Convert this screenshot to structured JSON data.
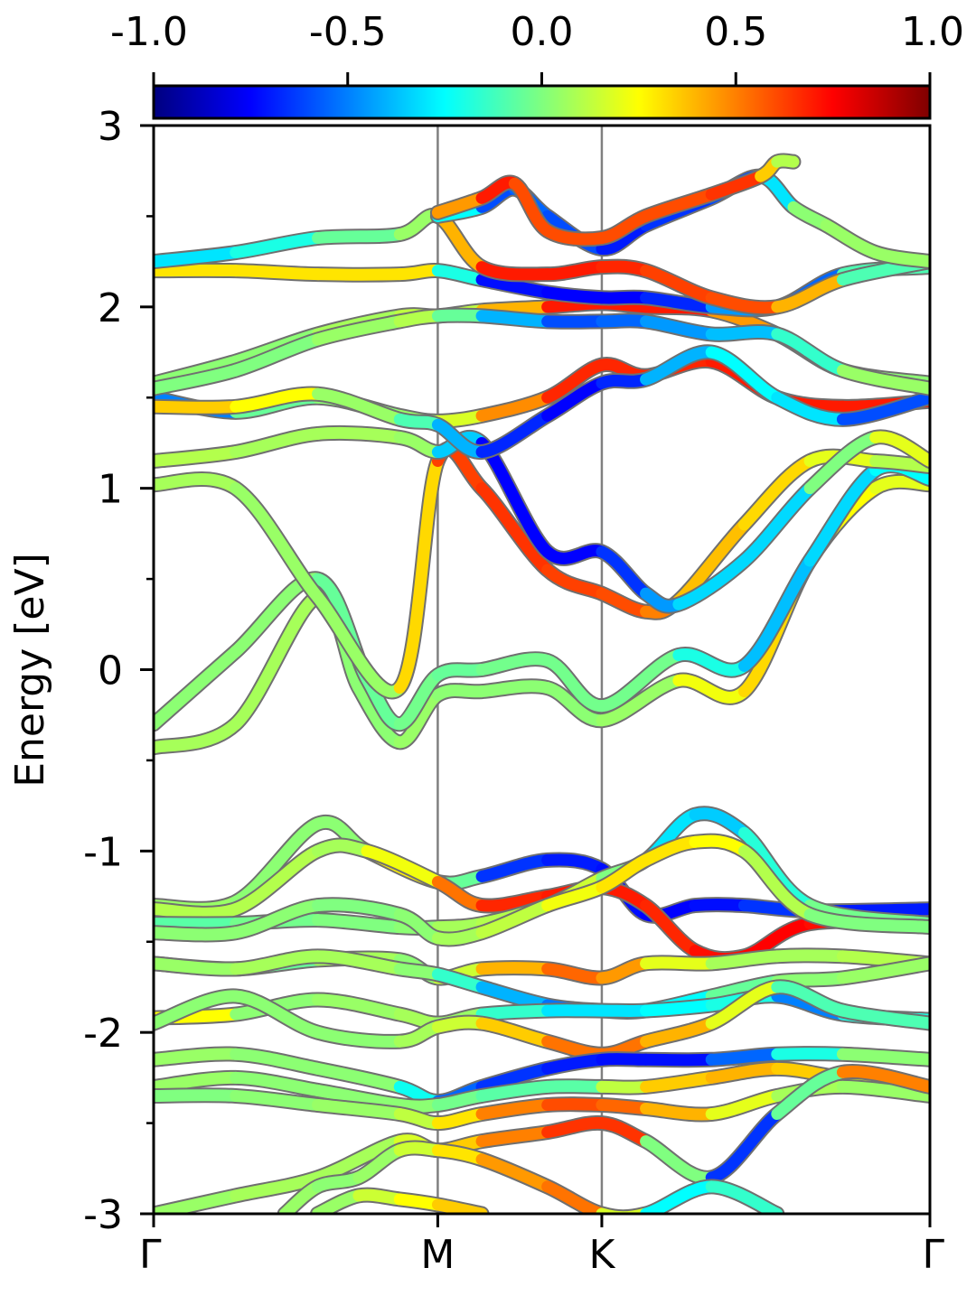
{
  "chart_data": {
    "type": "line",
    "title": "",
    "xlabel": "",
    "ylabel": "Energy [eV]",
    "ylim": [
      -3,
      3
    ],
    "xlim": [
      0,
      4.732
    ],
    "x_ticks": [
      {
        "x": 0,
        "label": "Γ"
      },
      {
        "x": 1.732,
        "label": "M"
      },
      {
        "x": 2.732,
        "label": "K"
      },
      {
        "x": 4.732,
        "label": "Γ"
      }
    ],
    "y_ticks": [
      -3,
      -2,
      -1,
      0,
      1,
      2,
      3
    ],
    "y_tick_labels": [
      "-3",
      "-2",
      "-1",
      "0",
      "1",
      "2",
      "3"
    ],
    "y_minor_ticks": [
      -2.5,
      -1.5,
      -0.5,
      0.5,
      1.5,
      2.5
    ],
    "high_symmetry_lines": [
      1.732,
      2.732
    ],
    "colorbar": {
      "colormap": "jet",
      "min": -1.0,
      "max": 1.0,
      "tick_values": [
        -1.0,
        -0.5,
        0.0,
        0.5,
        1.0
      ],
      "tick_labels": [
        "-1.0",
        "-0.5",
        "0.0",
        "0.5",
        "1.0"
      ]
    },
    "grid": false,
    "series": [
      {
        "x": [
          0,
          0.5,
          1.0,
          1.25,
          1.5,
          1.732,
          2.0,
          2.4,
          2.732,
          3.2,
          3.6,
          4.0,
          4.4,
          4.732
        ],
        "y": [
          -0.43,
          -0.3,
          0.4,
          -0.1,
          -0.4,
          -0.14,
          -0.12,
          -0.1,
          -0.28,
          -0.06,
          -0.12,
          0.6,
          1.0,
          1.02
        ],
        "c": [
          0.05,
          0.1,
          0.05,
          0.0,
          0.05,
          0.05,
          0.0,
          0.05,
          0.0,
          0.1,
          0.35,
          0.3,
          0.2,
          0.2
        ]
      },
      {
        "x": [
          0,
          0.5,
          1.0,
          1.3,
          1.5,
          1.732,
          2.0,
          2.4,
          2.732,
          3.2,
          3.6,
          4.0,
          4.4,
          4.732
        ],
        "y": [
          -0.3,
          0.1,
          0.5,
          -0.05,
          -0.3,
          -0.03,
          0.0,
          0.05,
          -0.2,
          0.08,
          0.02,
          0.6,
          1.1,
          1.05
        ],
        "c": [
          0.0,
          0.05,
          0.0,
          -0.1,
          0.0,
          -0.05,
          -0.05,
          0.0,
          -0.05,
          0.0,
          -0.4,
          -0.35,
          -0.3,
          -0.2
        ]
      },
      {
        "x": [
          0,
          0.5,
          1.0,
          1.5,
          1.732,
          2.0,
          2.4,
          2.732,
          3.0,
          3.2,
          3.6,
          4.0,
          4.4,
          4.732
        ],
        "y": [
          1.02,
          1.0,
          0.4,
          -0.1,
          1.15,
          1.0,
          0.55,
          0.42,
          0.32,
          0.38,
          0.8,
          1.15,
          1.15,
          1.12
        ],
        "c": [
          0.1,
          0.05,
          0.05,
          0.05,
          0.6,
          0.65,
          0.65,
          0.6,
          0.6,
          0.4,
          0.35,
          0.3,
          0.1,
          0.1
        ]
      },
      {
        "x": [
          0,
          0.5,
          1.0,
          1.5,
          1.732,
          2.0,
          2.4,
          2.732,
          3.0,
          3.2,
          3.6,
          4.0,
          4.4,
          4.732
        ],
        "y": [
          1.15,
          1.2,
          1.3,
          1.28,
          1.2,
          1.25,
          0.65,
          0.65,
          0.42,
          0.36,
          0.6,
          1.0,
          1.28,
          1.15
        ],
        "c": [
          0.1,
          0.1,
          0.05,
          0.1,
          0.0,
          -0.7,
          -0.8,
          -0.7,
          -0.6,
          -0.3,
          -0.35,
          -0.3,
          0.3,
          0.1
        ]
      },
      {
        "x": [
          0,
          0.5,
          1.0,
          1.5,
          1.732,
          2.0,
          2.4,
          2.732,
          3.0,
          3.4,
          3.8,
          4.2,
          4.732
        ],
        "y": [
          1.5,
          1.42,
          1.5,
          1.4,
          1.37,
          1.4,
          1.5,
          1.68,
          1.62,
          1.7,
          1.5,
          1.45,
          1.48
        ],
        "c": [
          -0.9,
          -0.1,
          0.0,
          0.05,
          0.05,
          0.3,
          0.65,
          0.7,
          0.65,
          0.7,
          0.7,
          0.7,
          0.7
        ]
      },
      {
        "x": [
          0,
          0.5,
          1.0,
          1.5,
          1.732,
          2.0,
          2.4,
          2.732,
          3.0,
          3.4,
          3.8,
          4.2,
          4.732
        ],
        "y": [
          1.45,
          1.45,
          1.52,
          1.38,
          1.35,
          1.2,
          1.4,
          1.58,
          1.6,
          1.75,
          1.5,
          1.38,
          1.5
        ],
        "c": [
          0.3,
          0.4,
          0.1,
          0.0,
          -0.2,
          -0.6,
          -0.75,
          -0.75,
          -0.6,
          -0.2,
          -0.3,
          -0.3,
          -0.9
        ]
      },
      {
        "x": [
          0,
          0.5,
          1.0,
          1.5,
          1.732,
          2.0,
          2.4,
          2.732,
          3.0,
          3.4,
          3.8,
          4.2,
          4.732
        ],
        "y": [
          1.58,
          1.7,
          1.85,
          1.95,
          1.95,
          1.98,
          2.0,
          2.02,
          2.0,
          1.98,
          1.85,
          1.65,
          1.58
        ],
        "c": [
          0.05,
          0.0,
          0.05,
          0.1,
          0.15,
          0.1,
          0.7,
          0.7,
          0.7,
          0.7,
          0.2,
          0.0,
          0.05
        ]
      },
      {
        "x": [
          0,
          0.5,
          1.0,
          1.5,
          1.732,
          2.0,
          2.4,
          2.732,
          3.0,
          3.4,
          3.8,
          4.2,
          4.732
        ],
        "y": [
          1.55,
          1.65,
          1.82,
          1.92,
          1.95,
          1.95,
          1.92,
          1.92,
          1.92,
          1.85,
          1.85,
          1.65,
          1.55
        ],
        "c": [
          0.0,
          0.0,
          0.0,
          0.1,
          0.1,
          -0.2,
          -0.6,
          -0.6,
          -0.5,
          -0.4,
          -0.35,
          0.05,
          0.05
        ]
      },
      {
        "x": [
          0,
          0.5,
          1.0,
          1.5,
          1.732,
          2.0,
          2.4,
          2.732,
          3.0,
          3.4,
          3.8,
          4.2,
          4.732
        ],
        "y": [
          2.2,
          2.2,
          2.18,
          2.18,
          2.2,
          2.15,
          2.08,
          2.05,
          2.05,
          2.0,
          2.0,
          2.18,
          2.22
        ],
        "c": [
          0.3,
          0.3,
          0.3,
          0.3,
          0.3,
          -0.7,
          -0.75,
          -0.75,
          -0.75,
          -0.6,
          -0.3,
          -0.8,
          0.6
        ]
      },
      {
        "x": [
          0,
          0.5,
          1.0,
          1.5,
          1.732,
          2.0,
          2.4,
          2.732,
          3.0,
          3.4,
          3.8,
          4.2,
          4.732
        ],
        "y": [
          2.25,
          2.3,
          2.38,
          2.4,
          2.5,
          2.22,
          2.18,
          2.22,
          2.2,
          2.05,
          2.0,
          2.15,
          2.25
        ],
        "c": [
          -0.3,
          -0.3,
          -0.1,
          0.0,
          0.1,
          0.7,
          0.7,
          0.7,
          0.65,
          0.6,
          0.6,
          0.2,
          -0.4
        ]
      },
      {
        "x": [
          1.732,
          2.0,
          2.2,
          2.4,
          2.732,
          3.0,
          3.4,
          3.7,
          3.9,
          4.1,
          4.4,
          4.732
        ],
        "y": [
          2.5,
          2.55,
          2.65,
          2.5,
          2.32,
          2.45,
          2.6,
          2.72,
          2.55,
          2.45,
          2.3,
          2.25
        ],
        "c": [
          0.1,
          -0.6,
          -0.6,
          -0.5,
          -0.7,
          -0.7,
          -0.6,
          -0.6,
          0.0,
          0.05,
          0.05,
          0.05
        ]
      },
      {
        "x": [
          1.732,
          2.0,
          2.2,
          2.4,
          2.732,
          3.0,
          3.4,
          3.7,
          3.8,
          3.9
        ],
        "y": [
          2.52,
          2.6,
          2.68,
          2.42,
          2.38,
          2.5,
          2.62,
          2.72,
          2.8,
          2.8
        ],
        "c": [
          0.2,
          0.7,
          0.7,
          0.5,
          0.7,
          0.5,
          0.7,
          0.6,
          0.1,
          0.1
        ]
      },
      {
        "x": [
          0,
          0.5,
          1.0,
          1.3,
          1.732,
          2.0,
          2.4,
          2.732,
          3.0,
          3.3,
          3.6,
          4.0,
          4.732
        ],
        "y": [
          -1.3,
          -1.28,
          -0.85,
          -1.0,
          -1.17,
          -1.14,
          -1.05,
          -1.1,
          -1.35,
          -1.3,
          -1.3,
          -1.33,
          -1.32
        ],
        "c": [
          0.05,
          0.05,
          0.0,
          0.05,
          0.5,
          -0.6,
          -0.7,
          -0.7,
          -0.75,
          -0.75,
          -0.7,
          -0.6,
          -0.8
        ]
      },
      {
        "x": [
          0,
          0.5,
          1.0,
          1.3,
          1.732,
          2.0,
          2.4,
          2.732,
          3.0,
          3.3,
          3.6,
          4.0,
          4.732
        ],
        "y": [
          -1.32,
          -1.32,
          -1.0,
          -1.0,
          -1.17,
          -1.3,
          -1.25,
          -1.2,
          -1.3,
          -1.55,
          -1.58,
          -1.4,
          -1.4
        ],
        "c": [
          0.1,
          0.1,
          0.1,
          0.05,
          0.4,
          0.65,
          0.7,
          0.7,
          0.7,
          0.65,
          0.8,
          0.7,
          0.75
        ]
      },
      {
        "x": [
          0,
          0.5,
          1.0,
          1.5,
          1.732,
          2.0,
          2.4,
          2.732,
          3.0,
          3.3,
          3.6,
          4.0,
          4.732
        ],
        "y": [
          -1.4,
          -1.4,
          -1.38,
          -1.42,
          -1.42,
          -1.4,
          -1.3,
          -1.15,
          -1.05,
          -0.8,
          -0.9,
          -1.3,
          -1.4
        ],
        "c": [
          -0.1,
          -0.05,
          0.0,
          0.0,
          0.05,
          0.1,
          0.1,
          0.2,
          -0.2,
          -0.4,
          -0.3,
          -0.05,
          0.0
        ]
      },
      {
        "x": [
          0,
          0.5,
          1.0,
          1.5,
          1.732,
          2.0,
          2.4,
          2.732,
          3.0,
          3.3,
          3.6,
          4.0,
          4.732
        ],
        "y": [
          -1.45,
          -1.45,
          -1.3,
          -1.35,
          -1.48,
          -1.45,
          -1.3,
          -1.2,
          -1.05,
          -0.95,
          -1.0,
          -1.35,
          -1.42
        ],
        "c": [
          0.0,
          0.05,
          0.0,
          0.0,
          0.05,
          0.1,
          0.15,
          0.3,
          0.3,
          0.3,
          0.2,
          0.0,
          0.0
        ]
      },
      {
        "x": [
          0,
          0.5,
          1.0,
          1.5,
          1.732,
          2.0,
          2.4,
          2.732,
          3.0,
          3.4,
          3.8,
          4.2,
          4.732
        ],
        "y": [
          -1.62,
          -1.65,
          -1.6,
          -1.6,
          -1.7,
          -1.65,
          -1.65,
          -1.7,
          -1.62,
          -1.62,
          -1.58,
          -1.58,
          -1.62
        ],
        "c": [
          0.0,
          -0.2,
          0.1,
          0.05,
          0.0,
          0.3,
          0.5,
          0.6,
          0.3,
          0.1,
          0.05,
          0.1,
          0.1
        ]
      },
      {
        "x": [
          0,
          0.5,
          1.0,
          1.5,
          1.732,
          2.0,
          2.4,
          2.732,
          3.0,
          3.4,
          3.8,
          4.2,
          4.732
        ],
        "y": [
          -1.62,
          -1.65,
          -1.58,
          -1.65,
          -1.68,
          -1.75,
          -1.85,
          -1.88,
          -1.88,
          -1.8,
          -1.72,
          -1.7,
          -1.62
        ],
        "c": [
          0.05,
          0.05,
          0.1,
          0.05,
          0.0,
          -0.3,
          -0.5,
          -0.55,
          -0.4,
          -0.1,
          0.0,
          0.05,
          0.05
        ]
      },
      {
        "x": [
          0,
          0.5,
          1.0,
          1.5,
          1.732,
          2.0,
          2.4,
          2.732,
          3.0,
          3.4,
          3.8,
          4.2,
          4.732
        ],
        "y": [
          -1.92,
          -1.9,
          -1.82,
          -1.9,
          -1.95,
          -1.9,
          -1.88,
          -1.88,
          -1.88,
          -1.85,
          -1.8,
          -1.9,
          -1.93
        ],
        "c": [
          0.5,
          0.0,
          0.05,
          0.05,
          0.1,
          0.0,
          -0.3,
          -0.3,
          -0.3,
          -0.2,
          -0.2,
          -0.8,
          0.4
        ]
      },
      {
        "x": [
          0,
          0.5,
          1.0,
          1.5,
          1.732,
          2.0,
          2.4,
          2.732,
          3.0,
          3.4,
          3.8,
          4.2,
          4.732
        ],
        "y": [
          -1.95,
          -1.8,
          -2.0,
          -2.05,
          -1.97,
          -1.95,
          -2.05,
          -2.12,
          -2.05,
          -1.95,
          -1.75,
          -1.88,
          -1.95
        ],
        "c": [
          0.0,
          0.05,
          0.0,
          0.05,
          0.1,
          0.2,
          0.5,
          0.55,
          0.5,
          0.3,
          0.1,
          -0.3,
          0.1
        ]
      },
      {
        "x": [
          0,
          0.5,
          1.0,
          1.5,
          1.732,
          2.0,
          2.4,
          2.732,
          3.0,
          3.4,
          3.8,
          4.2,
          4.732
        ],
        "y": [
          -2.15,
          -2.12,
          -2.2,
          -2.3,
          -2.38,
          -2.3,
          -2.2,
          -2.15,
          -2.15,
          -2.15,
          -2.12,
          -2.12,
          -2.15
        ],
        "c": [
          0.05,
          0.05,
          0.0,
          0.05,
          -0.5,
          -0.6,
          -0.7,
          -0.7,
          -0.75,
          -0.7,
          -0.4,
          0.0,
          0.05
        ]
      },
      {
        "x": [
          0,
          0.5,
          1.0,
          1.5,
          1.732,
          2.0,
          2.4,
          2.732,
          3.0,
          3.4,
          3.8,
          4.2,
          4.732
        ],
        "y": [
          -2.3,
          -2.25,
          -2.32,
          -2.4,
          -2.4,
          -2.35,
          -2.3,
          -2.3,
          -2.3,
          -2.25,
          -2.2,
          -2.25,
          -2.3
        ],
        "c": [
          0.05,
          0.05,
          0.0,
          0.05,
          0.0,
          -0.05,
          -0.1,
          -0.05,
          0.3,
          0.4,
          0.4,
          0.3,
          0.05
        ]
      },
      {
        "x": [
          0,
          0.5,
          1.0,
          1.5,
          1.732,
          2.0,
          2.4,
          2.732,
          3.0,
          3.4,
          3.8,
          4.2,
          4.732
        ],
        "y": [
          -2.35,
          -2.35,
          -2.4,
          -2.45,
          -2.5,
          -2.45,
          -2.4,
          -2.4,
          -2.42,
          -2.45,
          -2.35,
          -2.3,
          -2.35
        ],
        "c": [
          0.0,
          0.0,
          0.05,
          0.05,
          0.2,
          0.4,
          0.6,
          0.6,
          0.5,
          0.3,
          0.1,
          0.05,
          0.05
        ]
      },
      {
        "x": [
          0,
          0.5,
          1.0,
          1.5,
          1.732,
          2.0,
          2.4,
          2.732,
          3.0,
          3.4,
          3.8,
          4.2,
          4.732
        ],
        "y": [
          -3.0,
          -2.9,
          -2.8,
          -2.6,
          -2.65,
          -2.6,
          -2.55,
          -2.5,
          -2.6,
          -2.8,
          -2.45,
          -2.22,
          -2.3
        ],
        "c": [
          0.05,
          0.05,
          0.1,
          0.05,
          0.3,
          0.4,
          0.6,
          0.7,
          0.6,
          -0.6,
          -0.7,
          0.6,
          0.4
        ]
      },
      {
        "x": [
          0.8,
          1.0,
          1.25,
          1.5,
          1.732,
          2.0,
          2.4,
          2.732,
          3.0,
          3.4,
          3.8
        ],
        "y": [
          -3.0,
          -2.85,
          -2.8,
          -2.65,
          -2.65,
          -2.7,
          -2.85,
          -3.0,
          -3.0,
          -2.85,
          -3.0
        ],
        "c": [
          0.05,
          0.05,
          0.0,
          0.1,
          0.2,
          0.4,
          0.5,
          0.55,
          -0.2,
          -0.3,
          0.0
        ]
      },
      {
        "x": [
          1.0,
          1.25,
          1.5,
          1.732,
          2.0
        ],
        "y": [
          -3.0,
          -2.9,
          -2.92,
          -2.95,
          -3.0
        ],
        "c": [
          0.0,
          0.1,
          0.2,
          0.3,
          0.4
        ]
      }
    ]
  }
}
